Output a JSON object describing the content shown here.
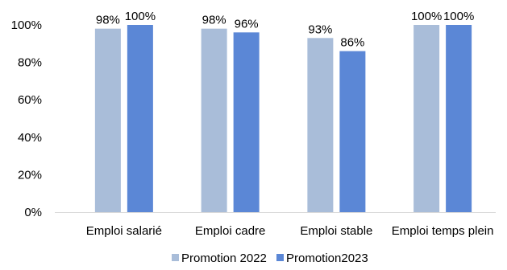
{
  "chart_data": {
    "type": "bar",
    "categories": [
      "Emploi salarié",
      "Emploi cadre",
      "Emploi stable",
      "Emploi temps plein"
    ],
    "series": [
      {
        "name": "Promotion 2022",
        "values": [
          98,
          98,
          93,
          100
        ],
        "labels": [
          "98%",
          "98%",
          "93%",
          "100%"
        ],
        "color": "#a9bdd9"
      },
      {
        "name": "Promotion2023",
        "values": [
          100,
          96,
          86,
          100
        ],
        "labels": [
          "100%",
          "96%",
          "86%",
          "100%"
        ],
        "color": "#5b87d6"
      }
    ],
    "ylim": [
      0,
      100
    ],
    "yticks": [
      0,
      20,
      40,
      60,
      80,
      100
    ],
    "ytick_labels": [
      "0%",
      "20%",
      "40%",
      "60%",
      "80%",
      "100%"
    ],
    "grid": false,
    "legend": "bottom-center",
    "axis_color": "#d9d9d9"
  }
}
